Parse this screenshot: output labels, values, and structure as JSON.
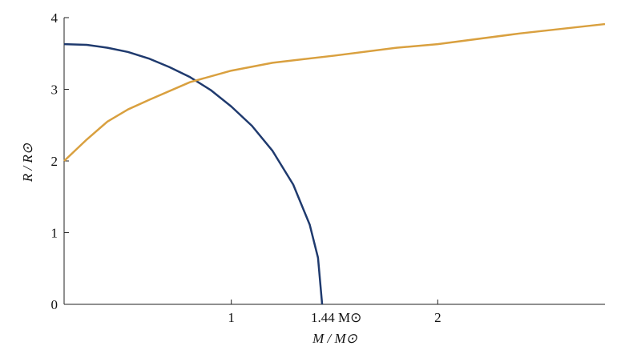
{
  "chart_data": {
    "type": "line",
    "xlabel": "M / M⊙",
    "ylabel": "R / R⊙",
    "xlim": [
      0.19,
      2.81
    ],
    "ylim": [
      0,
      4
    ],
    "xticks": [
      1,
      {
        "value": 1.44,
        "label": "1.44 M⊙"
      },
      2
    ],
    "yticks": [
      0,
      1,
      2,
      3,
      4
    ],
    "grid": false,
    "series": [
      {
        "color": "#1f3a6e",
        "x": [
          0.19,
          0.3,
          0.4,
          0.5,
          0.6,
          0.7,
          0.8,
          0.9,
          1.0,
          1.1,
          1.2,
          1.3,
          1.38,
          1.42,
          1.44
        ],
        "values": [
          3.63,
          3.62,
          3.58,
          3.52,
          3.43,
          3.31,
          3.17,
          2.99,
          2.76,
          2.49,
          2.14,
          1.67,
          1.11,
          0.65,
          0
        ]
      },
      {
        "color": "#d9a03f",
        "x": [
          0.19,
          0.3,
          0.4,
          0.5,
          0.6,
          0.8,
          1.0,
          1.2,
          1.5,
          1.8,
          2.0,
          2.4,
          2.81
        ],
        "values": [
          2.0,
          2.3,
          2.55,
          2.72,
          2.85,
          3.1,
          3.26,
          3.37,
          3.47,
          3.58,
          3.63,
          3.78,
          3.91
        ]
      }
    ]
  }
}
